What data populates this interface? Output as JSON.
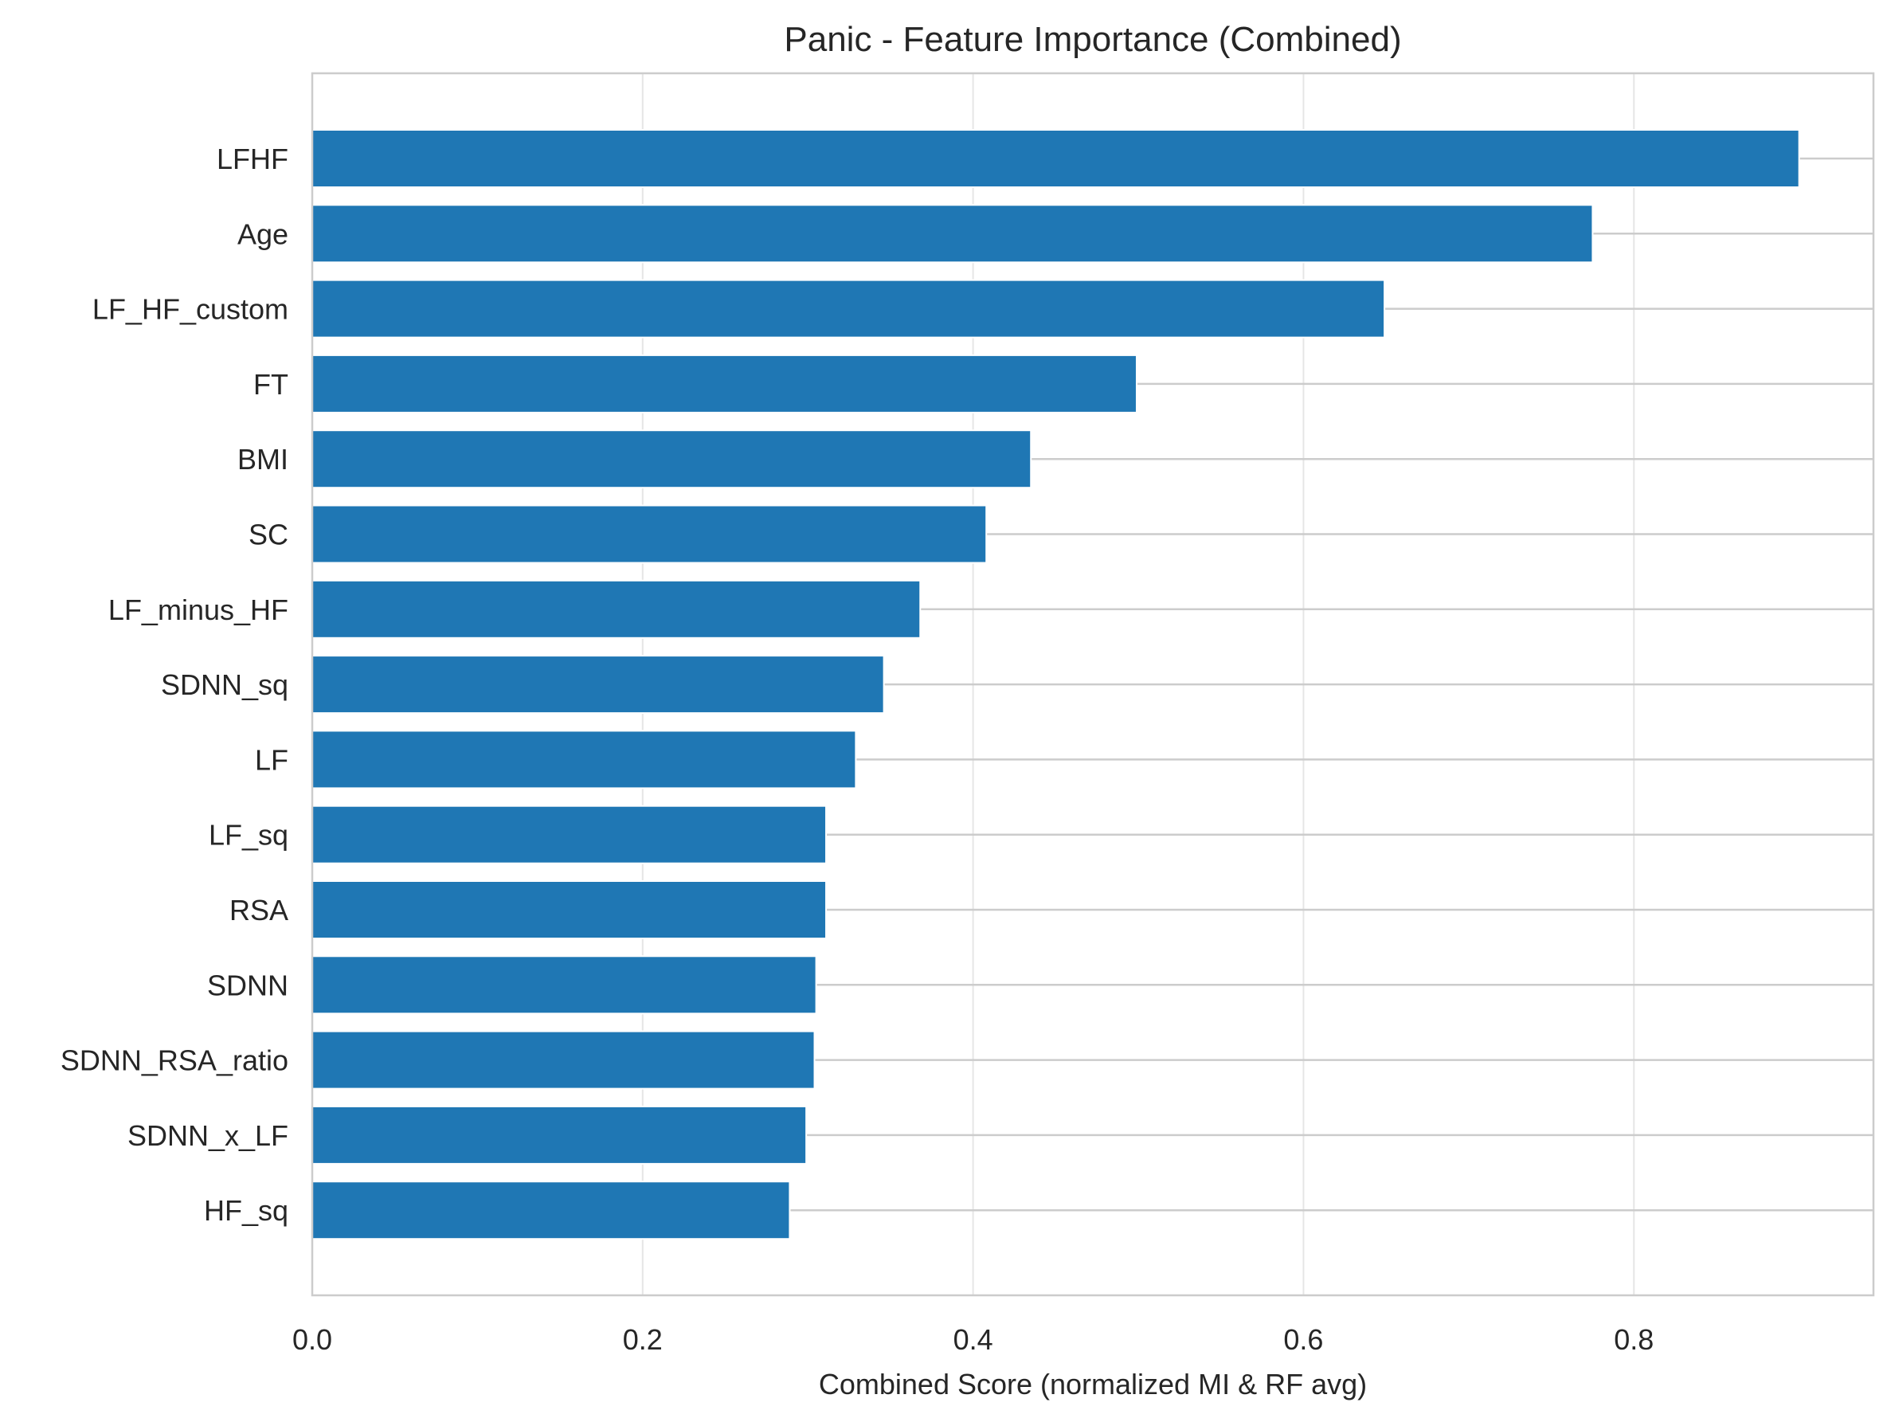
{
  "chart_data": {
    "type": "bar",
    "orientation": "horizontal",
    "title": "Panic - Feature Importance (Combined)",
    "xlabel": "Combined Score (normalized MI & RF avg)",
    "ylabel": "",
    "xlim": [
      0,
      0.945
    ],
    "x_ticks": [
      0.0,
      0.2,
      0.4,
      0.6,
      0.8
    ],
    "x_tick_labels": [
      "0.0",
      "0.2",
      "0.4",
      "0.6",
      "0.8"
    ],
    "grid": true,
    "bar_color": "#1f77b4",
    "categories": [
      "LFHF",
      "Age",
      "LF_HF_custom",
      "FT",
      "BMI",
      "SC",
      "LF_minus_HF",
      "SDNN_sq",
      "LF",
      "LF_sq",
      "RSA",
      "SDNN",
      "SDNN_RSA_ratio",
      "SDNN_x_LF",
      "HF_sq"
    ],
    "values": [
      0.9,
      0.775,
      0.649,
      0.499,
      0.435,
      0.408,
      0.368,
      0.346,
      0.329,
      0.311,
      0.311,
      0.305,
      0.304,
      0.299,
      0.289
    ]
  }
}
